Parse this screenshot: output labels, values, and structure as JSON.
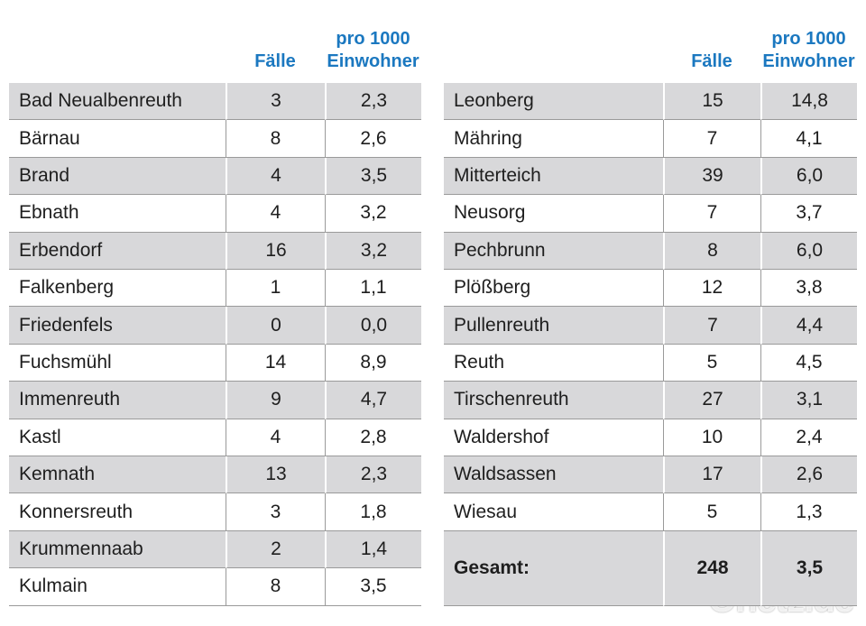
{
  "tables": [
    {
      "header": {
        "cases": "Fälle",
        "per_1000": "pro 1000\nEinwohner"
      },
      "rows": [
        [
          "Bad Neualbenreuth",
          "3",
          "2,3"
        ],
        [
          "Bärnau",
          "8",
          "2,6"
        ],
        [
          "Brand",
          "4",
          "3,5"
        ],
        [
          "Ebnath",
          "4",
          "3,2"
        ],
        [
          "Erbendorf",
          "16",
          "3,2"
        ],
        [
          "Falkenberg",
          "1",
          "1,1"
        ],
        [
          "Friedenfels",
          "0",
          "0,0"
        ],
        [
          "Fuchsmühl",
          "14",
          "8,9"
        ],
        [
          "Immenreuth",
          "9",
          "4,7"
        ],
        [
          "Kastl",
          "4",
          "2,8"
        ],
        [
          "Kemnath",
          "13",
          "2,3"
        ],
        [
          "Konnersreuth",
          "3",
          "1,8"
        ],
        [
          "Krummennaab",
          "2",
          "1,4"
        ],
        [
          "Kulmain",
          "8",
          "3,5"
        ]
      ]
    },
    {
      "header": {
        "cases": "Fälle",
        "per_1000": "pro 1000\nEinwohner"
      },
      "rows": [
        [
          "Leonberg",
          "15",
          "14,8"
        ],
        [
          "Mähring",
          "7",
          "4,1"
        ],
        [
          "Mitterteich",
          "39",
          "6,0"
        ],
        [
          "Neusorg",
          "7",
          "3,7"
        ],
        [
          "Pechbrunn",
          "8",
          "6,0"
        ],
        [
          "Plößberg",
          "12",
          "3,8"
        ],
        [
          "Pullenreuth",
          "7",
          "4,4"
        ],
        [
          "Reuth",
          "5",
          "4,5"
        ],
        [
          "Tirschenreuth",
          "27",
          "3,1"
        ],
        [
          "Waldershof",
          "10",
          "2,4"
        ],
        [
          "Waldsassen",
          "17",
          "2,6"
        ],
        [
          "Wiesau",
          "5",
          "1,3"
        ]
      ],
      "total": [
        "Gesamt:",
        "248",
        "3,5"
      ]
    }
  ],
  "watermark": "Onetz.de"
}
